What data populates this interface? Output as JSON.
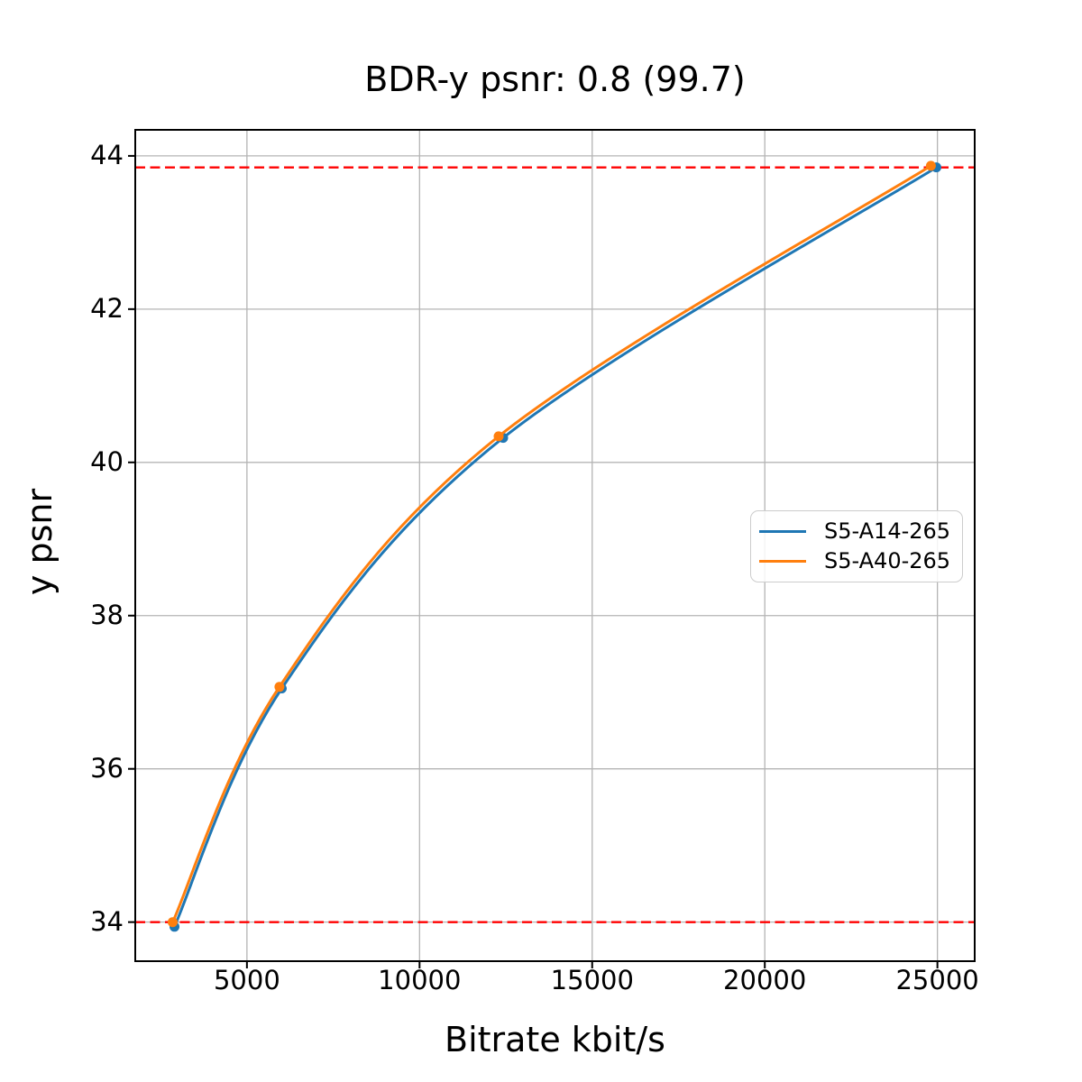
{
  "chart_data": {
    "type": "line",
    "title": "BDR-y psnr: 0.8 (99.7)",
    "xlabel": "Bitrate kbit/s",
    "ylabel": "y psnr",
    "xlim": [
      1765,
      26080
    ],
    "ylim": [
      33.49,
      44.34
    ],
    "xticks": [
      5000,
      10000,
      15000,
      20000,
      25000
    ],
    "xtick_labels": [
      "5000",
      "10000",
      "15000",
      "20000",
      "25000"
    ],
    "yticks": [
      34,
      36,
      38,
      40,
      42,
      44
    ],
    "ytick_labels": [
      "34",
      "36",
      "38",
      "40",
      "42",
      "44"
    ],
    "grid": true,
    "grid_color": "#b4b4b4",
    "background_color": "#ffffff",
    "spine_color": "#000000",
    "legend": {
      "position": "center-right",
      "entries": [
        "S5-A14-265",
        "S5-A40-265"
      ]
    },
    "series": [
      {
        "name": "S5-A14-265",
        "color": "#1f77b4",
        "marker": "o",
        "line_style": "solid",
        "points": [
          [
            2900,
            33.94
          ],
          [
            6010,
            37.05
          ],
          [
            12420,
            40.32
          ],
          [
            24970,
            43.85
          ]
        ]
      },
      {
        "name": "S5-A40-265",
        "color": "#ff7f0e",
        "marker": "o",
        "line_style": "solid",
        "points": [
          [
            2850,
            34.0
          ],
          [
            5940,
            37.07
          ],
          [
            12290,
            40.34
          ],
          [
            24810,
            43.87
          ]
        ]
      }
    ],
    "hlines": [
      {
        "y": 34.0,
        "color": "#ff0000",
        "style": "dashed"
      },
      {
        "y": 43.85,
        "color": "#ff0000",
        "style": "dashed"
      }
    ]
  }
}
